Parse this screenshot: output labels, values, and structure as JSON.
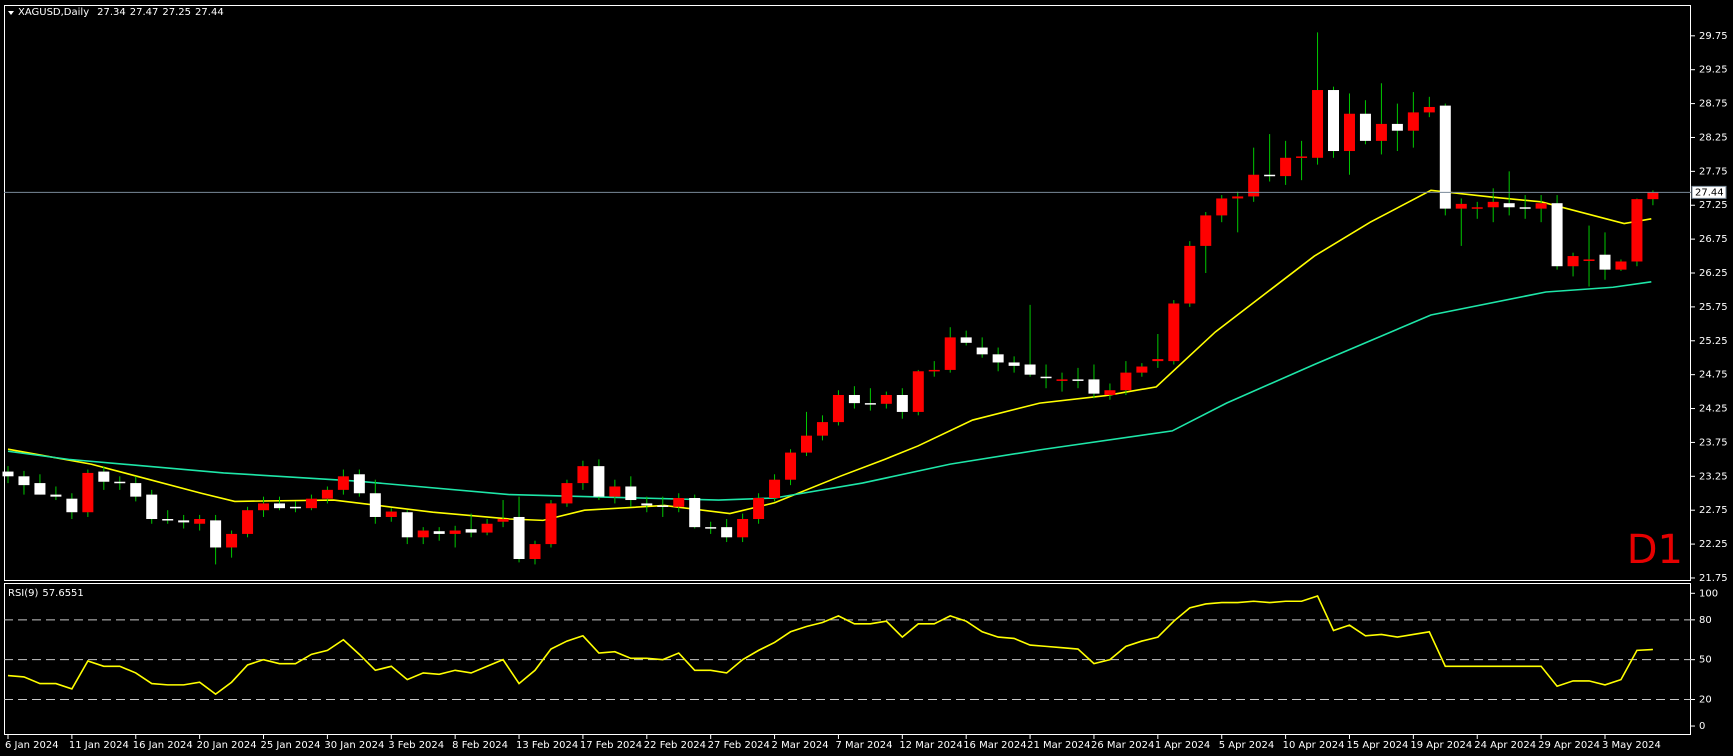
{
  "chart_data": {
    "type": "candlestick",
    "title": "XAGUSD,Daily",
    "categories": [
      "6 Jan 2024",
      null,
      null,
      null,
      "11 Jan 2024",
      null,
      null,
      null,
      "16 Jan 2024",
      null,
      null,
      null,
      "20 Jan 2024",
      null,
      null,
      null,
      "25 Jan 2024",
      null,
      null,
      null,
      "30 Jan 2024",
      null,
      null,
      null,
      "3 Feb 2024",
      null,
      null,
      null,
      "8 Feb 2024",
      null,
      null,
      null,
      "13 Feb 2024",
      null,
      null,
      null,
      "17 Feb 2024",
      null,
      null,
      null,
      "22 Feb 2024",
      null,
      null,
      null,
      "27 Feb 2024",
      null,
      null,
      null,
      "2 Mar 2024",
      null,
      null,
      null,
      "7 Mar 2024",
      null,
      null,
      null,
      "12 Mar 2024",
      null,
      null,
      null,
      "16 Mar 2024",
      null,
      null,
      null,
      "21 Mar 2024",
      null,
      null,
      null,
      "26 Mar 2024",
      null,
      null,
      null,
      "1 Apr 2024",
      null,
      null,
      null,
      "5 Apr 2024",
      null,
      null,
      null,
      "10 Apr 2024",
      null,
      null,
      null,
      "15 Apr 2024",
      null,
      null,
      null,
      "19 Apr 2024",
      null,
      null,
      null,
      "24 Apr 2024",
      null,
      null,
      null,
      "29 Apr 2024",
      null,
      null,
      null,
      "3 May 2024",
      null,
      null,
      null
    ],
    "open": [
      23.32,
      23.25,
      23.15,
      22.98,
      22.92,
      22.72,
      23.32,
      23.17,
      23.15,
      22.98,
      22.62,
      22.6,
      22.55,
      22.6,
      22.2,
      22.4,
      22.75,
      22.85,
      22.8,
      22.78,
      22.92,
      23.05,
      23.28,
      23.0,
      22.65,
      22.72,
      22.35,
      22.44,
      22.4,
      22.47,
      22.42,
      22.58,
      22.65,
      22.03,
      22.25,
      22.85,
      23.15,
      23.4,
      22.95,
      23.1,
      22.85,
      22.82,
      22.8,
      22.93,
      22.5,
      22.5,
      22.35,
      22.62,
      22.93,
      23.2,
      23.6,
      23.85,
      24.05,
      24.45,
      24.33,
      24.32,
      24.45,
      24.2,
      24.8,
      24.82,
      25.3,
      25.15,
      25.05,
      24.93,
      24.9,
      24.72,
      24.68,
      24.68,
      24.68,
      24.45,
      24.52,
      24.78,
      24.95,
      24.95,
      25.8,
      26.65,
      27.1,
      27.35,
      27.38,
      27.7,
      27.68,
      27.95,
      27.95,
      28.95,
      28.05,
      28.6,
      28.2,
      28.45,
      28.35,
      28.62,
      28.72,
      27.2,
      27.22,
      27.22,
      27.28,
      27.22,
      27.2,
      27.28,
      26.35,
      26.45,
      26.52,
      26.3,
      26.42,
      27.34
    ],
    "high": [
      23.4,
      23.33,
      23.28,
      23.1,
      23.0,
      23.35,
      23.4,
      23.25,
      23.25,
      23.05,
      22.75,
      22.68,
      22.68,
      22.68,
      22.45,
      22.8,
      22.95,
      22.95,
      22.88,
      22.98,
      23.1,
      23.35,
      23.35,
      23.2,
      22.78,
      22.75,
      22.5,
      22.5,
      22.52,
      22.7,
      22.62,
      22.9,
      22.95,
      22.3,
      22.9,
      23.2,
      23.48,
      23.5,
      23.2,
      23.25,
      22.95,
      22.95,
      23.0,
      22.98,
      22.58,
      22.62,
      22.7,
      23.0,
      23.28,
      23.65,
      24.2,
      24.15,
      24.52,
      24.58,
      24.55,
      24.5,
      24.55,
      24.82,
      24.95,
      25.45,
      25.4,
      25.3,
      25.15,
      25.02,
      25.78,
      24.9,
      24.78,
      24.85,
      24.9,
      24.62,
      24.95,
      24.92,
      25.35,
      25.85,
      26.72,
      27.15,
      27.4,
      27.45,
      28.1,
      28.3,
      28.2,
      28.2,
      29.8,
      29.0,
      28.9,
      28.8,
      29.05,
      28.75,
      28.92,
      28.85,
      28.75,
      27.35,
      27.3,
      27.5,
      27.75,
      27.4,
      27.4,
      27.4,
      26.55,
      26.95,
      26.85,
      26.45,
      27.35,
      27.47
    ],
    "low": [
      23.15,
      22.98,
      22.98,
      22.9,
      22.62,
      22.65,
      23.05,
      23.05,
      22.88,
      22.55,
      22.55,
      22.48,
      22.45,
      21.95,
      22.05,
      22.35,
      22.65,
      22.75,
      22.72,
      22.75,
      22.85,
      22.98,
      22.95,
      22.55,
      22.58,
      22.25,
      22.25,
      22.3,
      22.2,
      22.35,
      22.38,
      22.5,
      21.98,
      21.95,
      22.2,
      22.8,
      23.05,
      22.9,
      22.85,
      22.8,
      22.72,
      22.65,
      22.72,
      22.48,
      22.4,
      22.28,
      22.28,
      22.55,
      22.88,
      23.12,
      23.55,
      23.78,
      24.0,
      24.25,
      24.22,
      24.25,
      24.1,
      24.15,
      24.72,
      24.78,
      25.18,
      25.0,
      24.8,
      24.78,
      24.72,
      24.55,
      24.5,
      24.55,
      24.4,
      24.38,
      24.45,
      24.72,
      24.85,
      24.9,
      25.75,
      26.25,
      27.0,
      26.85,
      27.3,
      27.6,
      27.55,
      27.62,
      27.85,
      27.95,
      27.7,
      28.15,
      28.0,
      28.05,
      28.1,
      28.55,
      27.1,
      26.65,
      27.05,
      27.0,
      27.1,
      27.05,
      27.0,
      26.3,
      26.2,
      26.05,
      26.15,
      26.28,
      26.35,
      27.25
    ],
    "close": [
      23.25,
      23.12,
      22.98,
      22.95,
      22.72,
      23.3,
      23.17,
      23.15,
      22.95,
      22.62,
      22.6,
      22.57,
      22.62,
      22.2,
      22.4,
      22.75,
      22.85,
      22.78,
      22.78,
      22.92,
      23.05,
      23.25,
      23.0,
      22.65,
      22.73,
      22.35,
      22.45,
      22.4,
      22.45,
      22.42,
      22.55,
      22.62,
      22.03,
      22.25,
      22.85,
      23.15,
      23.4,
      22.95,
      23.1,
      22.9,
      22.82,
      22.8,
      22.93,
      22.5,
      22.48,
      22.35,
      22.62,
      22.93,
      23.2,
      23.6,
      23.85,
      24.05,
      24.45,
      24.33,
      24.32,
      24.45,
      24.2,
      24.8,
      24.82,
      25.3,
      25.22,
      25.05,
      24.93,
      24.88,
      24.75,
      24.7,
      24.68,
      24.66,
      24.47,
      24.52,
      24.78,
      24.87,
      24.98,
      25.8,
      26.65,
      27.1,
      27.35,
      27.38,
      27.7,
      27.68,
      27.95,
      27.97,
      28.95,
      28.05,
      28.6,
      28.2,
      28.45,
      28.35,
      28.62,
      28.7,
      27.2,
      27.27,
      27.22,
      27.3,
      27.22,
      27.2,
      27.28,
      26.35,
      26.5,
      26.45,
      26.3,
      26.42,
      27.34,
      27.44
    ],
    "up_color": "#ff0000",
    "down_color": "#ffffff",
    "wick_color": "#00c800",
    "ylim": [
      21.72,
      30.19
    ],
    "yticks": [
      29.75,
      29.25,
      28.75,
      28.25,
      27.75,
      27.25,
      26.75,
      26.25,
      25.75,
      25.25,
      24.75,
      24.25,
      23.75,
      23.25,
      22.75,
      22.25,
      21.75
    ],
    "overlays": [
      {
        "color": "#ffff00",
        "x": [
          0,
          5.2,
          12.1,
          14.2,
          20.4,
          26.6,
          31.4,
          33.5,
          36.1,
          41.1,
          45.2,
          48,
          52.1,
          54.9,
          57,
          60.4,
          64.6,
          68.7,
          71.9,
          75.6,
          81.8,
          85.3,
          89.1,
          92.9,
          96,
          101.2,
          102.9
        ],
        "values": [
          23.65,
          23.43,
          23.0,
          22.88,
          22.9,
          22.72,
          22.62,
          22.6,
          22.75,
          22.82,
          22.7,
          22.86,
          23.25,
          23.5,
          23.7,
          24.08,
          24.33,
          24.44,
          24.57,
          25.38,
          26.5,
          27.0,
          27.47,
          27.37,
          27.3,
          26.98,
          27.05
        ]
      },
      {
        "color": "#1ee6a8",
        "x": [
          0,
          3.8,
          13.5,
          21.8,
          31.4,
          44.5,
          48,
          53.5,
          59,
          64.6,
          72.9,
          76.3,
          81.8,
          89.1,
          96.3,
          100.5,
          102.9
        ],
        "values": [
          23.62,
          23.5,
          23.3,
          23.18,
          22.98,
          22.9,
          22.93,
          23.15,
          23.43,
          23.64,
          23.92,
          24.33,
          24.9,
          25.63,
          25.97,
          26.04,
          26.12
        ]
      }
    ],
    "price_line_color": "#7a8a99",
    "annotation": "D1",
    "rsi": {
      "title": "RSI(9)",
      "color": "#ffff00",
      "values": [
        38,
        37,
        32,
        32,
        28,
        49,
        45,
        45,
        40,
        32,
        31,
        31,
        33,
        24,
        33,
        46,
        50,
        47,
        47,
        54,
        57,
        65,
        54,
        42,
        45,
        35,
        40,
        39,
        42,
        40,
        45,
        50,
        32,
        42,
        58,
        64,
        68,
        55,
        56,
        51,
        51,
        50,
        55,
        42,
        42,
        40,
        50,
        57,
        63,
        71,
        75,
        78,
        83,
        77,
        77,
        79,
        67,
        77,
        77,
        83,
        79,
        71,
        67,
        66,
        61,
        60,
        59,
        58,
        47,
        50,
        60,
        64,
        67,
        79,
        89,
        92,
        93,
        93,
        94,
        93,
        94,
        94,
        98,
        72,
        76,
        68,
        69,
        67,
        69,
        71,
        45,
        45,
        45,
        45,
        45,
        45,
        45,
        30,
        34,
        34,
        31,
        35,
        57,
        57.6551
      ],
      "ylim": [
        -6,
        107
      ],
      "yticks": [
        100,
        80,
        50,
        20,
        0
      ],
      "levels": [
        80,
        50,
        20
      ]
    }
  }
}
